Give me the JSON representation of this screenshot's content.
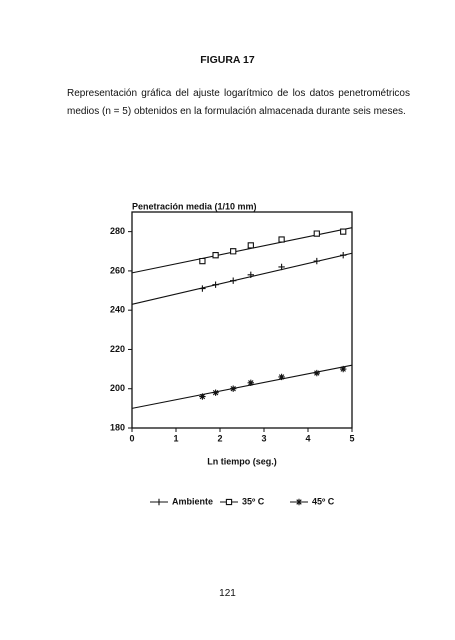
{
  "figure_label": "FIGURA 17",
  "caption": "Representación gráfica del ajuste logarítmico de los datos penetrométricos medios (n = 5) obtenidos en la formulación almacenada durante seis meses.",
  "page_number": "121",
  "chart_data": {
    "type": "scatter",
    "title": "Penetración media (1/10 mm)",
    "x_label": "Ln tiempo (seg.)",
    "x": [
      1.6,
      1.9,
      2.3,
      2.7,
      3.4,
      4.2,
      4.8
    ],
    "series": [
      {
        "name": "Ambiente",
        "color": "#111111",
        "marker": "plus",
        "values": [
          251,
          253,
          255,
          258,
          262,
          265,
          268
        ],
        "fit_x": [
          0,
          5
        ],
        "fit_y": [
          243,
          269
        ]
      },
      {
        "name": "35º C",
        "color": "#111111",
        "marker": "square",
        "values": [
          265,
          268,
          270,
          273,
          276,
          279,
          280
        ],
        "fit_x": [
          0,
          5
        ],
        "fit_y": [
          259,
          282
        ]
      },
      {
        "name": "45º C",
        "color": "#111111",
        "marker": "asterisk",
        "values": [
          196,
          198,
          200,
          203,
          206,
          208,
          210
        ],
        "fit_x": [
          0,
          5
        ],
        "fit_y": [
          190,
          212
        ]
      }
    ],
    "xlim": [
      0,
      5
    ],
    "xticks": [
      0,
      1,
      2,
      3,
      4,
      5
    ],
    "ylim": [
      180,
      290
    ],
    "yticks": [
      180,
      200,
      220,
      240,
      260,
      280
    ],
    "grid": false
  }
}
